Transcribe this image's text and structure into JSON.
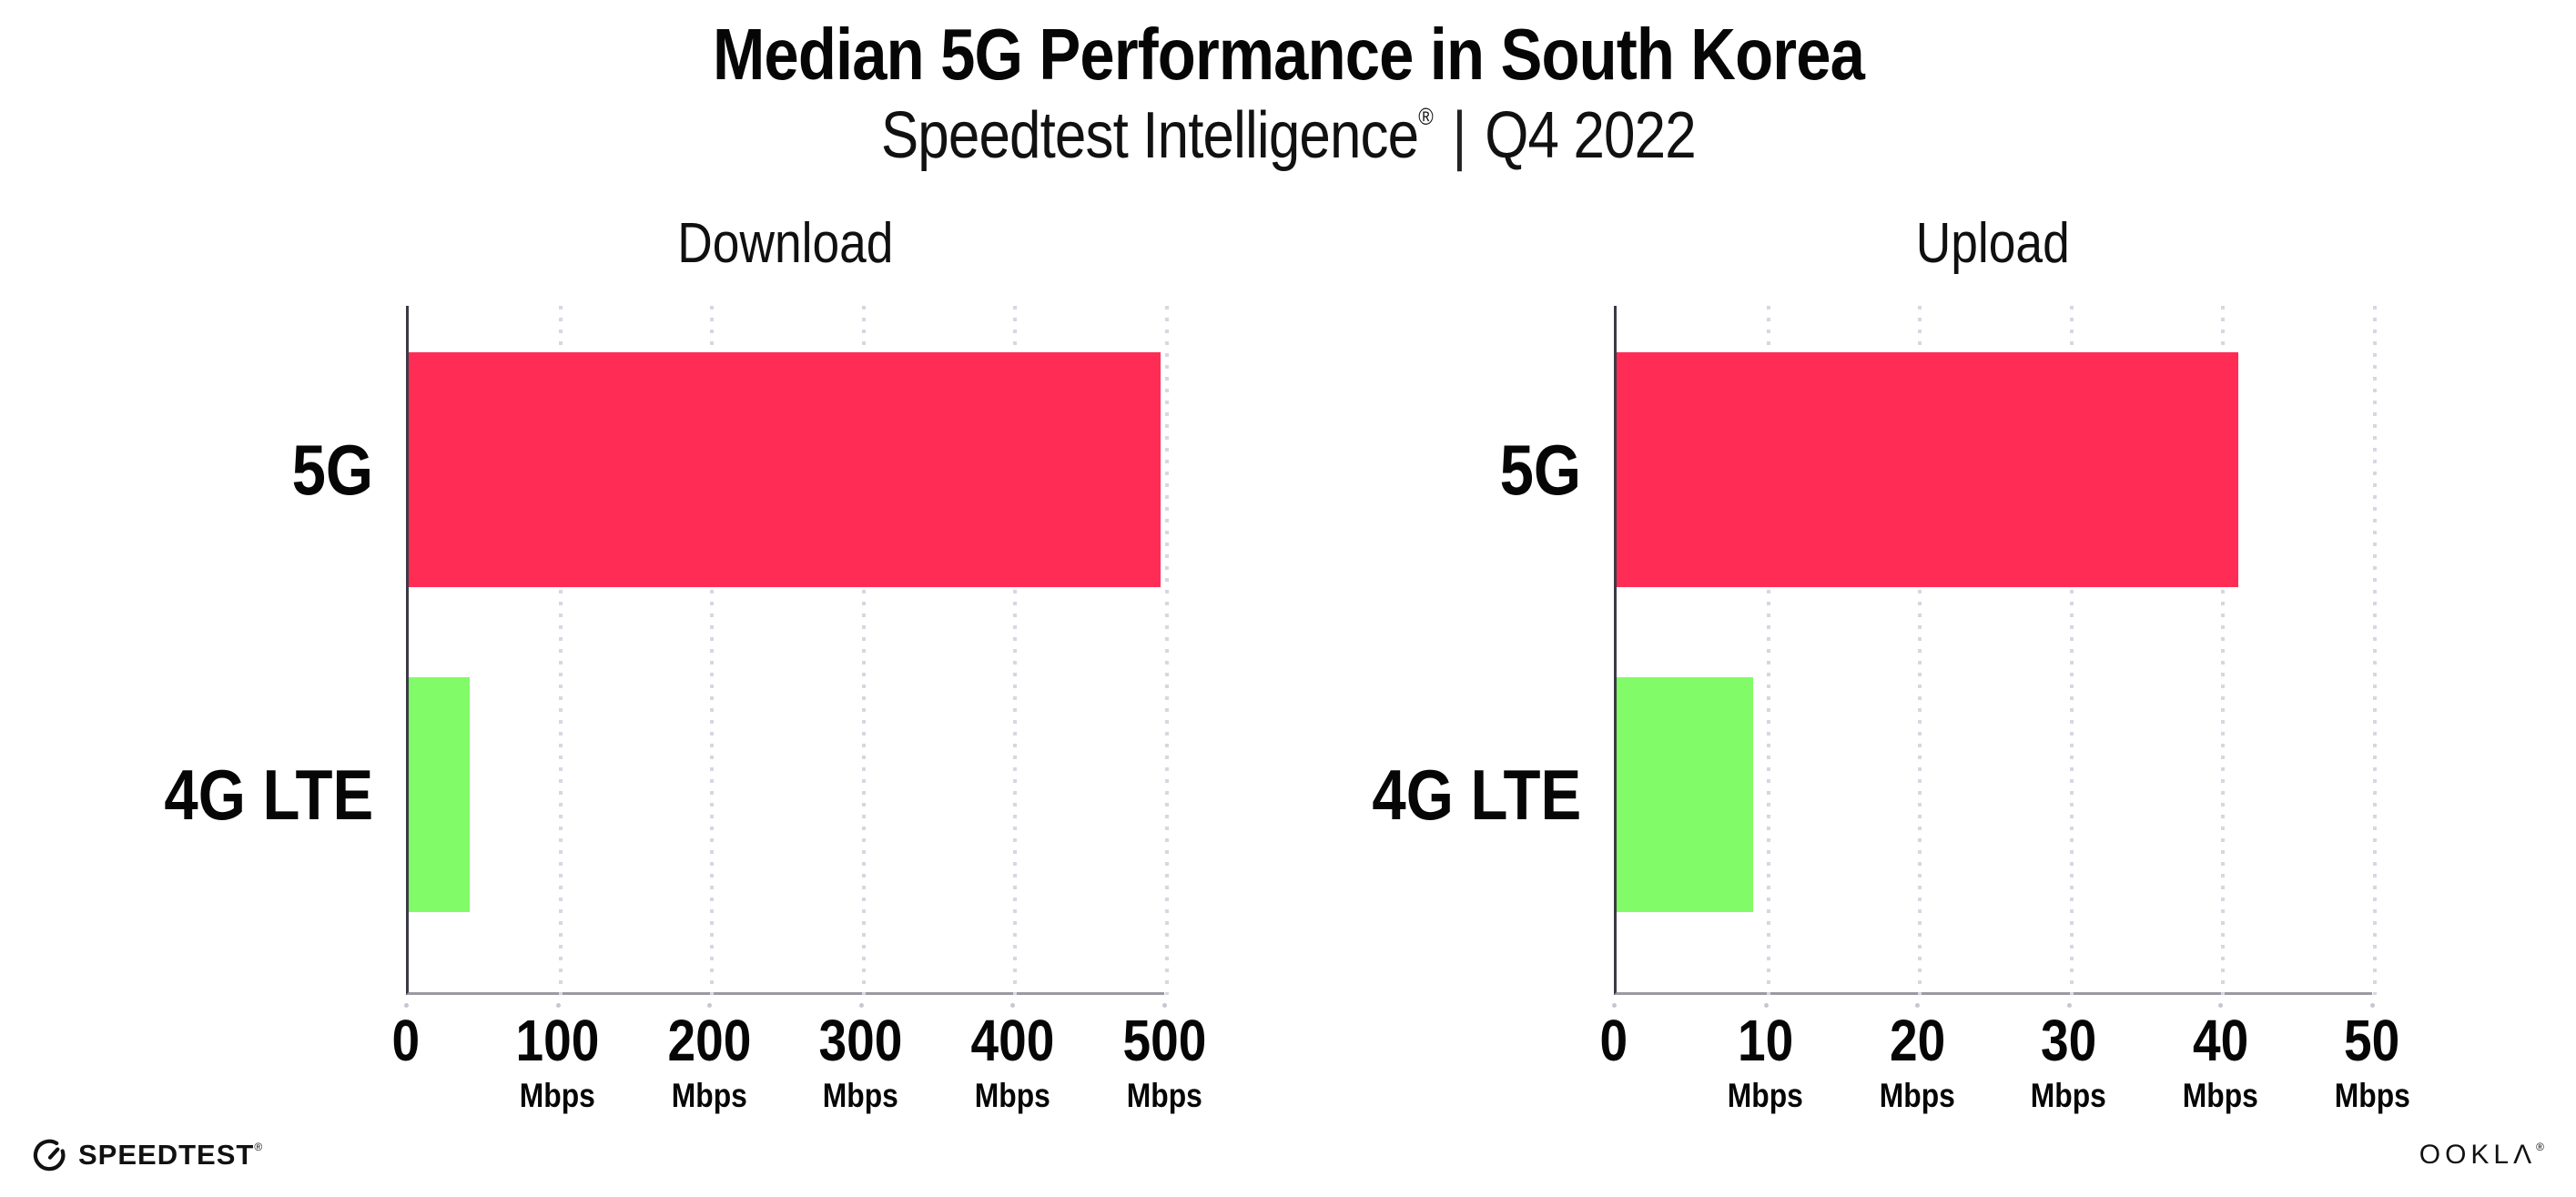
{
  "header": {
    "title": "Median 5G Performance in South Korea",
    "subtitle_brand": "Speedtest Intelligence",
    "subtitle_registered": "®",
    "subtitle_separator": "|",
    "subtitle_period": "Q4 2022"
  },
  "chart_data": [
    {
      "type": "bar",
      "orientation": "horizontal",
      "title": "Download",
      "categories": [
        "5G",
        "4G LTE"
      ],
      "values": [
        496,
        40
      ],
      "unit": "Mbps",
      "xlim": [
        0,
        500
      ],
      "xticks": [
        0,
        100,
        200,
        300,
        400,
        500
      ],
      "bar_colors": [
        "#FF2D55",
        "#82FB68"
      ],
      "grid": true,
      "legend": false
    },
    {
      "type": "bar",
      "orientation": "horizontal",
      "title": "Upload",
      "categories": [
        "5G",
        "4G LTE"
      ],
      "values": [
        41,
        9
      ],
      "unit": "Mbps",
      "xlim": [
        0,
        50
      ],
      "xticks": [
        0,
        10,
        20,
        30,
        40,
        50
      ],
      "bar_colors": [
        "#FF2D55",
        "#82FB68"
      ],
      "grid": true,
      "legend": false
    }
  ],
  "footer": {
    "speedtest_wordmark": "SPEEDTEST",
    "speedtest_registered": "®",
    "ookla_wordmark": "OOKLΛ",
    "ookla_registered": "®"
  },
  "colors": {
    "bar_5g": "#FF2D55",
    "bar_4g_lte": "#82FB68",
    "background": "#FFFFFF",
    "text": "#0B0B0C",
    "gridline": "#D7D7E2",
    "axis_spine": "#3A3A46",
    "axis_baseline": "#9A9AA2"
  }
}
